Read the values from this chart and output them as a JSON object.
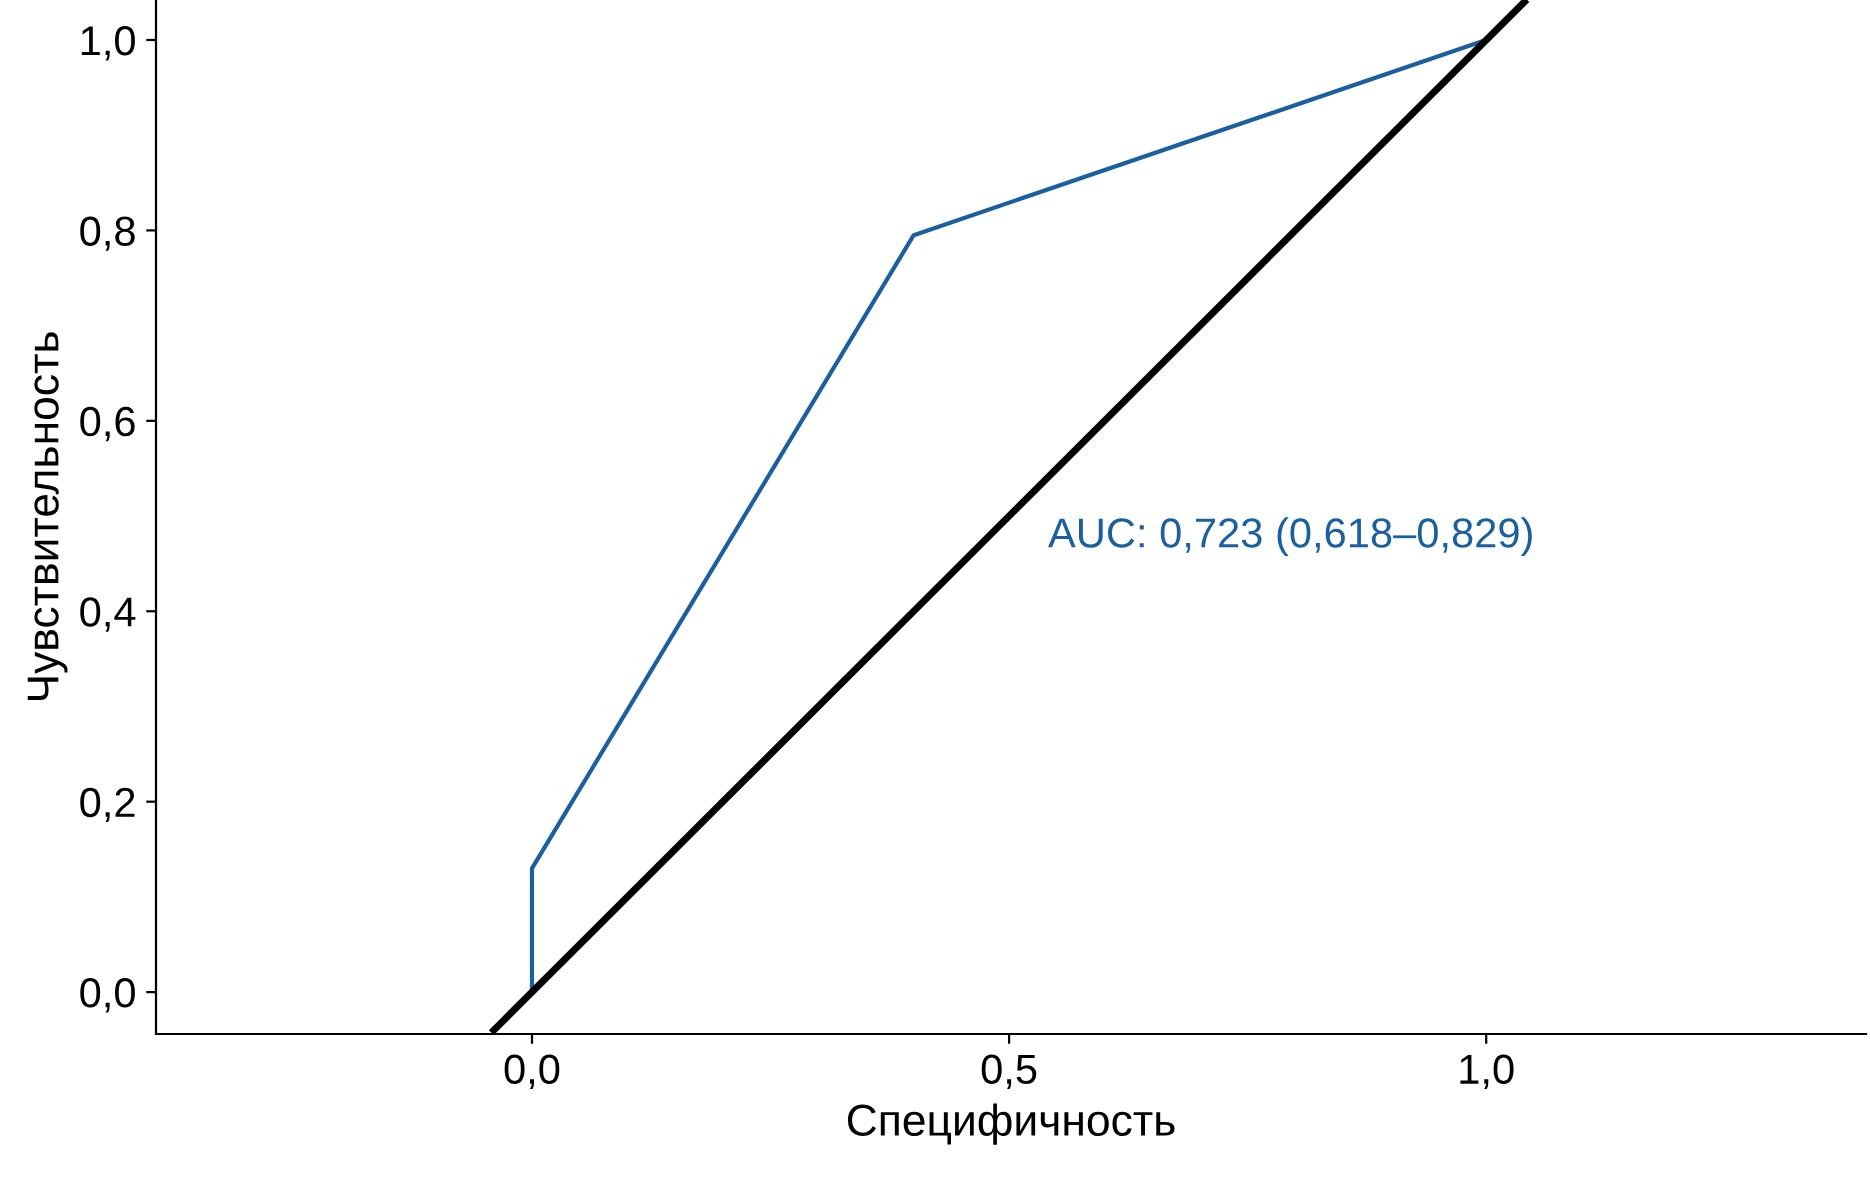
{
  "chart_data": {
    "type": "line",
    "xlabel": "Специфичность",
    "ylabel": "Чувствительность",
    "xlim": [
      -0.394,
      1.398
    ],
    "ylim": [
      -0.044,
      1.042
    ],
    "xticks": [
      {
        "value": 0,
        "label": "0,0"
      },
      {
        "value": 0.5,
        "label": "0,5"
      },
      {
        "value": 1,
        "label": "1,0"
      }
    ],
    "yticks": [
      {
        "value": 0,
        "label": "0,0"
      },
      {
        "value": 0.2,
        "label": "0,2"
      },
      {
        "value": 0.4,
        "label": "0,4"
      },
      {
        "value": 0.6,
        "label": "0,6"
      },
      {
        "value": 0.8,
        "label": "0,8"
      },
      {
        "value": 1,
        "label": "1,0"
      }
    ],
    "series": [
      {
        "color": "#1a5fa0",
        "x": [
          0,
          0,
          0.4,
          1
        ],
        "values": [
          0,
          0.13,
          0.795,
          1
        ]
      },
      {
        "color": "#000000",
        "x": [
          -0.04,
          1.04
        ],
        "values": [
          -0.04,
          1.04
        ]
      }
    ],
    "annotations": [
      "AUC: 0,723 (0,618–0,829)"
    ],
    "grid": false,
    "legend": false
  }
}
